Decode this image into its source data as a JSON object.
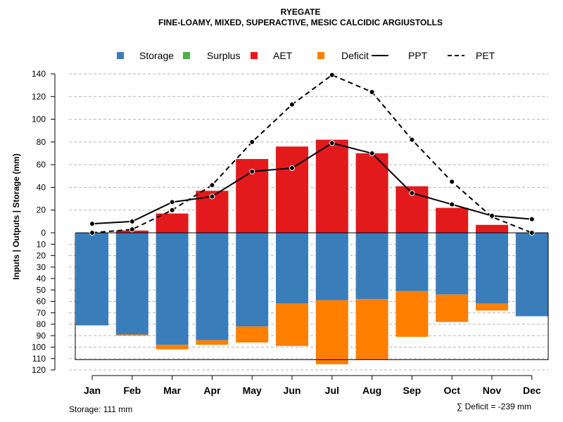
{
  "chart_data": {
    "type": "bar",
    "title": "RYEGATE",
    "subtitle": "FINE-LOAMY, MIXED, SUPERACTIVE, MESIC CALCIDIC ARGIUSTOLLS",
    "ylabel": "Inputs | Outputs | Storage    (mm)",
    "categories": [
      "Jan",
      "Feb",
      "Mar",
      "Apr",
      "May",
      "Jun",
      "Jul",
      "Aug",
      "Sep",
      "Oct",
      "Nov",
      "Dec"
    ],
    "ylim_upper": [
      0,
      140
    ],
    "ylim_lower": [
      0,
      120
    ],
    "yticks_upper": [
      "0",
      "20",
      "40",
      "60",
      "80",
      "100",
      "120",
      "140"
    ],
    "yticks_lower": [
      "10",
      "20",
      "30",
      "40",
      "50",
      "60",
      "70",
      "80",
      "90",
      "100",
      "110",
      "120"
    ],
    "storage_capacity": 111,
    "legend": [
      {
        "label": "Storage",
        "kind": "box",
        "color": "#3A7DBB"
      },
      {
        "label": "Surplus",
        "kind": "box",
        "color": "#4DAF4A"
      },
      {
        "label": "AET",
        "kind": "box",
        "color": "#E31A1C"
      },
      {
        "label": "Deficit",
        "kind": "box",
        "color": "#FF7F00"
      },
      {
        "label": "PPT",
        "kind": "solid",
        "color": "#000000"
      },
      {
        "label": "PET",
        "kind": "dashed",
        "color": "#000000"
      }
    ],
    "series": [
      {
        "name": "AET",
        "values": [
          0,
          2,
          17,
          37,
          65,
          76,
          82,
          70,
          41,
          22,
          7,
          0
        ]
      },
      {
        "name": "Surplus",
        "values": [
          0,
          0,
          0,
          0,
          0,
          0,
          0,
          0,
          0,
          0,
          0,
          0
        ]
      },
      {
        "name": "Storage",
        "values": [
          81,
          89,
          98,
          94,
          82,
          62,
          59,
          58,
          51,
          54,
          62,
          73
        ]
      },
      {
        "name": "Deficit",
        "values": [
          0,
          1,
          4,
          4,
          14,
          37,
          56,
          53,
          40,
          24,
          6,
          0
        ]
      },
      {
        "name": "PPT",
        "values": [
          8,
          10,
          27,
          32,
          54,
          57,
          79,
          70,
          35,
          25,
          15,
          12
        ]
      },
      {
        "name": "PET",
        "values": [
          0,
          3,
          20,
          42,
          80,
          113,
          139,
          124,
          82,
          45,
          14,
          0
        ]
      }
    ],
    "footer_left": "Storage: 111 mm",
    "footer_right": "∑ Deficit = -239 mm"
  }
}
